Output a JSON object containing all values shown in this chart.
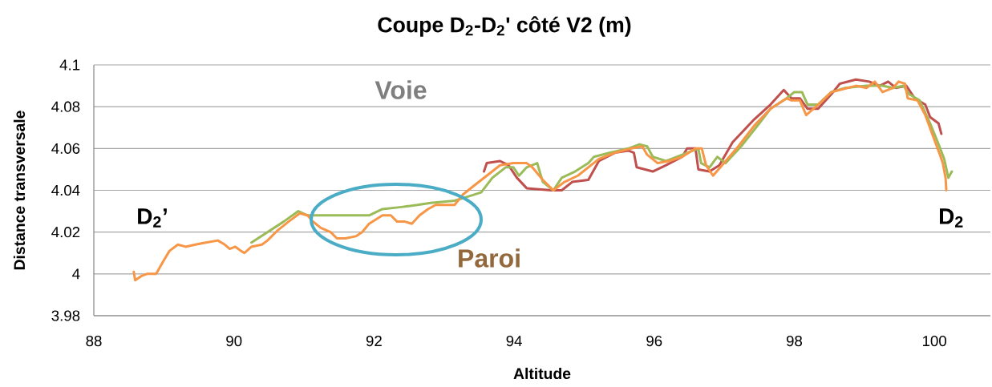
{
  "chart_data": {
    "type": "line",
    "title": "Coupe D$_{2}$-D$_{2}$' côté V2 (m)",
    "xlabel": "Altitude",
    "ylabel": "Distance transversale",
    "xlim": [
      88,
      100.8
    ],
    "xticks": [
      88,
      90,
      92,
      94,
      96,
      98,
      100
    ],
    "ylim": [
      3.98,
      4.1
    ],
    "yticks": [
      3.98,
      4,
      4.02,
      4.04,
      4.06,
      4.08,
      4.1
    ],
    "grid": "y",
    "annotations": [
      "Voie",
      "Paroi",
      "D$_{2}$’",
      "D$_{2}$"
    ],
    "series": [
      {
        "color": "#c0504d",
        "x": [
          93.57,
          93.61,
          93.8,
          93.92,
          94.04,
          94.18,
          94.53,
          94.68,
          94.83,
          95.06,
          95.21,
          95.44,
          95.63,
          95.71,
          95.75,
          95.98,
          96.17,
          96.4,
          96.47,
          96.59,
          96.63,
          96.79,
          96.93,
          97.12,
          97.43,
          97.66,
          97.85,
          97.96,
          98.08,
          98.19,
          98.34,
          98.53,
          98.65,
          98.88,
          99.07,
          99.22,
          99.34,
          99.45,
          99.6,
          99.72,
          99.87,
          99.94,
          100.06,
          100.1
        ],
        "values": [
          4.049,
          4.053,
          4.054,
          4.052,
          4.046,
          4.041,
          4.04,
          4.04,
          4.044,
          4.045,
          4.054,
          4.058,
          4.059,
          4.058,
          4.051,
          4.049,
          4.052,
          4.056,
          4.06,
          4.06,
          4.05,
          4.049,
          4.052,
          4.063,
          4.074,
          4.081,
          4.088,
          4.084,
          4.084,
          4.079,
          4.079,
          4.086,
          4.091,
          4.093,
          4.092,
          4.09,
          4.092,
          4.089,
          4.09,
          4.084,
          4.081,
          4.075,
          4.072,
          4.067
        ]
      },
      {
        "color": "#9bbb59",
        "x": [
          90.25,
          90.48,
          90.71,
          90.92,
          91.05,
          91.17,
          91.28,
          91.62,
          91.93,
          92.12,
          92.39,
          92.62,
          92.81,
          93.15,
          93.34,
          93.53,
          93.69,
          93.88,
          93.99,
          94.07,
          94.18,
          94.33,
          94.41,
          94.56,
          94.68,
          94.87,
          95.06,
          95.14,
          95.37,
          95.63,
          95.79,
          95.9,
          95.98,
          96.17,
          96.4,
          96.63,
          96.67,
          96.79,
          96.9,
          97.02,
          97.24,
          97.5,
          97.66,
          97.89,
          98.0,
          98.11,
          98.19,
          98.34,
          98.53,
          98.73,
          99.03,
          99.26,
          99.41,
          99.56,
          99.64,
          99.79,
          99.94,
          100.06,
          100.14,
          100.2,
          100.25
        ],
        "values": [
          4.015,
          4.02,
          4.025,
          4.03,
          4.028,
          4.028,
          4.028,
          4.028,
          4.028,
          4.031,
          4.032,
          4.033,
          4.034,
          4.035,
          4.037,
          4.039,
          4.046,
          4.051,
          4.051,
          4.047,
          4.051,
          4.053,
          4.044,
          4.04,
          4.046,
          4.049,
          4.053,
          4.056,
          4.058,
          4.06,
          4.062,
          4.061,
          4.056,
          4.054,
          4.057,
          4.06,
          4.053,
          4.051,
          4.056,
          4.053,
          4.061,
          4.072,
          4.079,
          4.084,
          4.087,
          4.087,
          4.081,
          4.081,
          4.087,
          4.089,
          4.09,
          4.09,
          4.089,
          4.09,
          4.086,
          4.083,
          4.072,
          4.062,
          4.055,
          4.046,
          4.049
        ]
      },
      {
        "color": "#f79646",
        "x": [
          88.57,
          88.59,
          88.68,
          88.76,
          88.89,
          88.99,
          89.08,
          89.2,
          89.31,
          89.45,
          89.6,
          89.77,
          89.87,
          89.94,
          90.02,
          90.1,
          90.15,
          90.25,
          90.4,
          90.48,
          90.63,
          90.78,
          90.94,
          91.05,
          91.13,
          91.24,
          91.38,
          91.47,
          91.59,
          91.74,
          91.83,
          91.93,
          92.12,
          92.24,
          92.33,
          92.44,
          92.54,
          92.65,
          92.77,
          92.88,
          93.04,
          93.15,
          93.27,
          93.42,
          93.61,
          93.8,
          93.99,
          94.18,
          94.26,
          94.41,
          94.56,
          94.72,
          94.91,
          95.06,
          95.21,
          95.44,
          95.67,
          95.83,
          95.9,
          96.05,
          96.21,
          96.4,
          96.59,
          96.68,
          96.74,
          96.84,
          96.97,
          97.2,
          97.43,
          97.66,
          97.89,
          97.96,
          98.08,
          98.17,
          98.34,
          98.53,
          98.65,
          98.88,
          99.03,
          99.15,
          99.26,
          99.41,
          99.49,
          99.58,
          99.62,
          99.76,
          99.87,
          99.98,
          100.08,
          100.12,
          100.16,
          100.17
        ],
        "values": [
          4.001,
          3.997,
          3.999,
          4.0,
          4.0,
          4.006,
          4.011,
          4.014,
          4.013,
          4.014,
          4.015,
          4.016,
          4.014,
          4.012,
          4.013,
          4.011,
          4.01,
          4.013,
          4.014,
          4.016,
          4.021,
          4.025,
          4.029,
          4.028,
          4.025,
          4.022,
          4.02,
          4.017,
          4.017,
          4.018,
          4.02,
          4.024,
          4.028,
          4.028,
          4.025,
          4.025,
          4.024,
          4.028,
          4.031,
          4.033,
          4.033,
          4.033,
          4.038,
          4.042,
          4.047,
          4.052,
          4.053,
          4.053,
          4.051,
          4.045,
          4.04,
          4.044,
          4.047,
          4.051,
          4.055,
          4.058,
          4.06,
          4.061,
          4.057,
          4.053,
          4.054,
          4.056,
          4.06,
          4.06,
          4.052,
          4.047,
          4.052,
          4.061,
          4.071,
          4.079,
          4.084,
          4.083,
          4.083,
          4.076,
          4.081,
          4.087,
          4.088,
          4.09,
          4.089,
          4.092,
          4.087,
          4.089,
          4.092,
          4.091,
          4.084,
          4.083,
          4.076,
          4.066,
          4.057,
          4.053,
          4.046,
          4.04
        ]
      }
    ]
  }
}
